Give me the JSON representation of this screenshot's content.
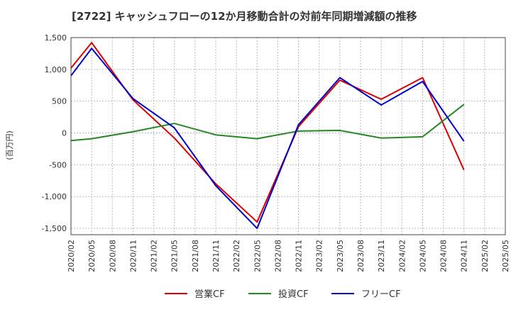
{
  "chart_data": {
    "type": "line",
    "title": "[2722]  キャッシュフローの12か月移動合計の対前年同期増減額の推移",
    "ylabel": "(百万円)",
    "ylim": [
      -1600,
      1500
    ],
    "y_ticks": [
      1500,
      1000,
      500,
      0,
      -500,
      -1000,
      -1500
    ],
    "y_tick_labels": [
      "1,500",
      "1,000",
      "500",
      "0",
      "-500",
      "-1,000",
      "-1,500"
    ],
    "x_tick_labels": [
      "2020/02",
      "2020/05",
      "2020/08",
      "2020/11",
      "2021/02",
      "2021/05",
      "2021/08",
      "2021/11",
      "2022/02",
      "2022/05",
      "2022/08",
      "2022/11",
      "2023/02",
      "2023/05",
      "2023/08",
      "2023/11",
      "2024/02",
      "2024/05",
      "2024/08",
      "2024/11",
      "2025/02",
      "2025/05"
    ],
    "grid": true,
    "legend_position": "bottom",
    "series": [
      {
        "name": "営業CF",
        "color": "#dd0000",
        "x": [
          "2020/02",
          "2020/05",
          "2020/11",
          "2021/05",
          "2021/11",
          "2022/05",
          "2022/11",
          "2023/05",
          "2023/11",
          "2024/05",
          "2024/11"
        ],
        "values": [
          1020,
          1420,
          520,
          -80,
          -800,
          -1400,
          100,
          830,
          530,
          870,
          -580
        ]
      },
      {
        "name": "投資CF",
        "color": "#228822",
        "x": [
          "2020/02",
          "2020/05",
          "2020/11",
          "2021/05",
          "2021/11",
          "2022/05",
          "2022/11",
          "2023/05",
          "2023/11",
          "2024/05",
          "2024/11"
        ],
        "values": [
          -120,
          -90,
          20,
          150,
          -30,
          -90,
          30,
          40,
          -80,
          -60,
          450
        ]
      },
      {
        "name": "フリーCF",
        "color": "#0000cc",
        "x": [
          "2020/02",
          "2020/05",
          "2020/11",
          "2021/05",
          "2021/11",
          "2022/05",
          "2022/11",
          "2023/05",
          "2023/11",
          "2024/05",
          "2024/11"
        ],
        "values": [
          900,
          1330,
          540,
          80,
          -830,
          -1500,
          130,
          870,
          440,
          810,
          -130
        ]
      }
    ]
  }
}
